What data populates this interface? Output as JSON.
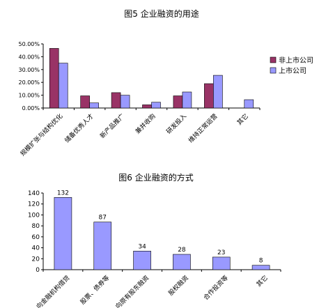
{
  "chart_data": [
    {
      "type": "bar",
      "title": "图5 企业融资的用途",
      "categories": [
        "规模扩张与结构优化",
        "储备优秀人才",
        "新产品推广",
        "兼并收购",
        "研发投入",
        "维持正常运营",
        "其它"
      ],
      "series": [
        {
          "name": "非上市公司",
          "color": "#993366",
          "values": [
            46.5,
            9.5,
            12.0,
            2.5,
            9.5,
            19.0,
            0.0
          ]
        },
        {
          "name": "上市公司",
          "color": "#9999ff",
          "values": [
            35.0,
            4.0,
            10.0,
            4.5,
            12.5,
            25.5,
            6.5
          ]
        }
      ],
      "yticks": [
        "0.00%",
        "10.00%",
        "20.00%",
        "30.00%",
        "40.00%",
        "50.00%"
      ],
      "ylim": [
        0,
        50
      ],
      "grid": false,
      "legend": "right"
    },
    {
      "type": "bar",
      "title": "图6 企业融资的方式",
      "categories": [
        "向金融机构借贷",
        "股票、债券等",
        "向原有股东融资",
        "股权融资",
        "合作投资等",
        "其它"
      ],
      "series": [
        {
          "name": "",
          "color": "#9999ff",
          "values": [
            132,
            87,
            34,
            28,
            23,
            8
          ]
        }
      ],
      "data_labels": [
        "132",
        "87",
        "34",
        "28",
        "23",
        "8"
      ],
      "yticks": [
        "0",
        "20",
        "40",
        "60",
        "80",
        "100",
        "120",
        "140"
      ],
      "ylim": [
        0,
        140
      ],
      "grid": false
    }
  ]
}
